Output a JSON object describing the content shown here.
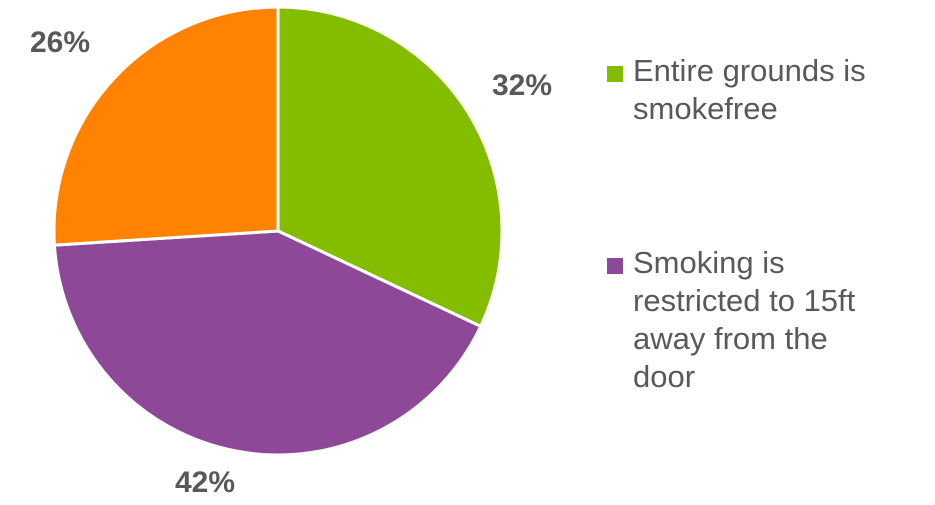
{
  "chart_data": {
    "type": "pie",
    "title": "",
    "slices": [
      {
        "label": "Entire grounds is smokefree",
        "value": 32,
        "display": "32%",
        "color": "#84bd00"
      },
      {
        "label": "Smoking is restricted to 15ft away from the door",
        "value": 42,
        "display": "42%",
        "color": "#8e4898"
      },
      {
        "label": "",
        "value": 26,
        "display": "26%",
        "color": "#ff8200"
      }
    ],
    "legend_position": "right",
    "data_labels": "outside"
  }
}
